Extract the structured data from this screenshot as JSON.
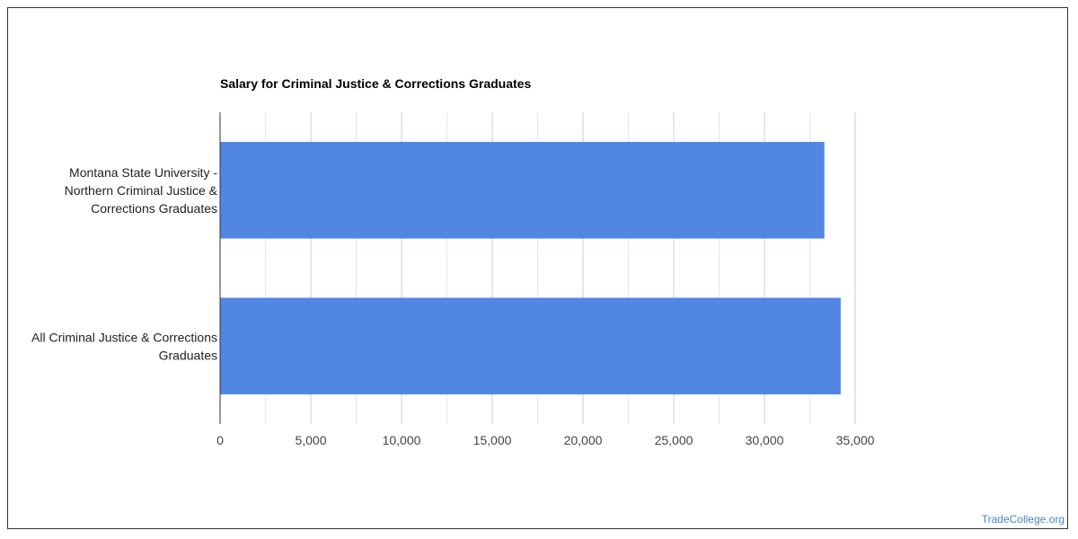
{
  "chart_data": {
    "type": "bar",
    "orientation": "horizontal",
    "title": "Salary for Criminal Justice & Corrections Graduates",
    "categories": [
      [
        "Montana State University -",
        "Northern Criminal Justice &",
        "Corrections Graduates"
      ],
      [
        "All Criminal Justice & Corrections",
        "Graduates"
      ]
    ],
    "values": [
      33300,
      34200
    ],
    "xlim": [
      0,
      35000
    ],
    "ticks": [
      "0",
      "5,000",
      "10,000",
      "15,000",
      "20,000",
      "25,000",
      "30,000",
      "35,000"
    ],
    "tick_values": [
      0,
      5000,
      10000,
      15000,
      20000,
      25000,
      30000,
      35000
    ],
    "minor_grid": true,
    "bar_color": "#5286e3",
    "grid_color": "#cccccc",
    "minor_grid_color": "#e6e6e6",
    "legend": "none"
  },
  "watermark": "TradeCollege.org"
}
